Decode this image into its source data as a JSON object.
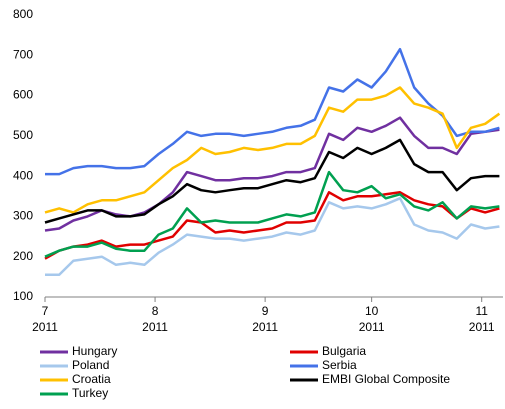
{
  "chart_data": {
    "type": "line",
    "x": [
      0,
      4,
      8,
      12,
      16,
      20,
      24,
      28,
      32,
      36,
      40,
      44,
      48,
      52,
      56,
      60,
      64,
      68,
      72,
      76,
      80,
      84,
      88,
      92,
      96,
      100,
      104,
      108,
      112,
      116,
      120,
      124,
      128
    ],
    "xlim": [
      0,
      129
    ],
    "xticks": [
      {
        "value": 0,
        "label": "7\n2011"
      },
      {
        "value": 31,
        "label": "8\n2011"
      },
      {
        "value": 62,
        "label": "9\n2011"
      },
      {
        "value": 92,
        "label": "10\n2011"
      },
      {
        "value": 123,
        "label": "11\n2011"
      }
    ],
    "ylim": [
      100,
      800
    ],
    "yticks": [
      100,
      200,
      300,
      400,
      500,
      600,
      700,
      800
    ],
    "grid": false,
    "legend": "bottom",
    "series": [
      {
        "name": "Hungary",
        "color": "#7030a0",
        "values": [
          265,
          270,
          290,
          300,
          315,
          305,
          300,
          310,
          330,
          360,
          410,
          400,
          390,
          390,
          395,
          395,
          400,
          410,
          410,
          420,
          505,
          490,
          520,
          510,
          525,
          545,
          500,
          470,
          470,
          455,
          505,
          510,
          515
        ]
      },
      {
        "name": "Bulgaria",
        "color": "#e00000",
        "values": [
          195,
          215,
          225,
          230,
          240,
          225,
          230,
          230,
          240,
          250,
          290,
          285,
          260,
          265,
          260,
          265,
          270,
          285,
          285,
          290,
          360,
          340,
          350,
          350,
          355,
          360,
          340,
          330,
          325,
          295,
          320,
          310,
          320
        ]
      },
      {
        "name": "Poland",
        "color": "#a6c8ec",
        "values": [
          155,
          155,
          190,
          195,
          200,
          180,
          185,
          180,
          210,
          230,
          255,
          250,
          245,
          245,
          240,
          245,
          250,
          260,
          255,
          265,
          335,
          320,
          325,
          320,
          330,
          345,
          280,
          265,
          260,
          245,
          280,
          270,
          275
        ]
      },
      {
        "name": "Serbia",
        "color": "#4472e8",
        "values": [
          405,
          405,
          420,
          425,
          425,
          420,
          420,
          425,
          455,
          480,
          510,
          500,
          505,
          505,
          500,
          505,
          510,
          520,
          525,
          540,
          620,
          610,
          640,
          620,
          660,
          715,
          620,
          580,
          550,
          500,
          510,
          510,
          520
        ]
      },
      {
        "name": "Croatia",
        "color": "#ffc000",
        "values": [
          310,
          320,
          310,
          330,
          340,
          340,
          350,
          360,
          390,
          420,
          440,
          470,
          455,
          460,
          470,
          465,
          470,
          480,
          480,
          500,
          570,
          560,
          590,
          590,
          600,
          620,
          580,
          570,
          555,
          470,
          520,
          530,
          555
        ]
      },
      {
        "name": "EMBI Global Composite",
        "color": "#000000",
        "values": [
          285,
          295,
          305,
          315,
          315,
          300,
          300,
          305,
          330,
          350,
          380,
          365,
          360,
          365,
          370,
          370,
          380,
          390,
          385,
          395,
          460,
          445,
          470,
          455,
          470,
          490,
          430,
          410,
          410,
          365,
          395,
          400,
          400
        ]
      },
      {
        "name": "Turkey",
        "color": "#00a050",
        "values": [
          200,
          215,
          225,
          225,
          235,
          220,
          215,
          215,
          255,
          270,
          320,
          285,
          290,
          285,
          285,
          285,
          295,
          305,
          300,
          310,
          410,
          365,
          360,
          375,
          345,
          355,
          325,
          315,
          335,
          295,
          325,
          320,
          325
        ]
      }
    ]
  }
}
